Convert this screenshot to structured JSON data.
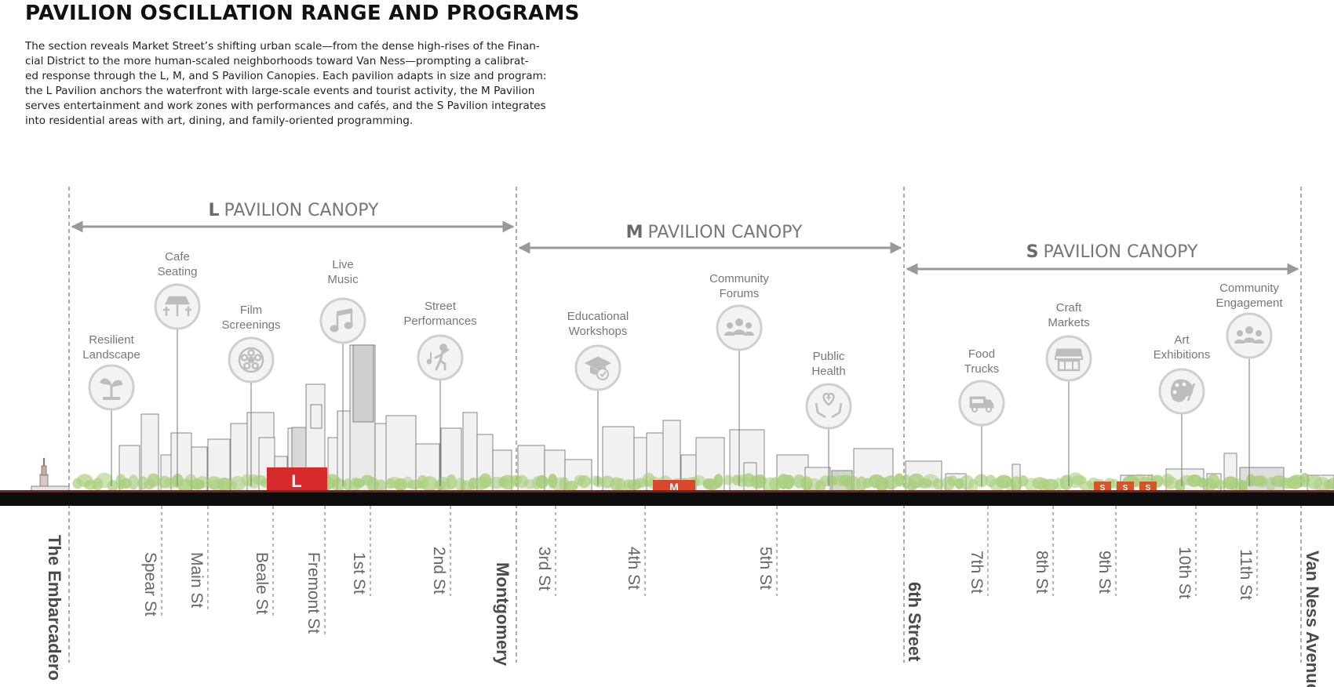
{
  "title": "PAVILION OSCILLATION RANGE AND PROGRAMS",
  "description_lines": [
    "The section reveals Market Street’s shifting urban scale—from the dense high-rises of the Finan-",
    "cial District to the more human-scaled neighborhoods toward Van Ness—prompting a calibrat-",
    "ed response through the L, M, and S Pavilion Canopies. Each pavilion adapts in size and program:",
    "the L Pavilion anchors the waterfront with large-scale events and tourist activity, the M Pavilion",
    "serves entertainment and work zones with performances and cafés, and the S Pavilion integrates",
    "into residential areas with art, dining, and family-oriented programming."
  ],
  "zones": [
    {
      "letter": "L",
      "label": "PAVILION CANOPY"
    },
    {
      "letter": "M",
      "label": "PAVILION CANOPY"
    },
    {
      "letter": "S",
      "label": "PAVILION CANOPY"
    }
  ],
  "programs": [
    {
      "lines": [
        "Resilient",
        "Landscape"
      ],
      "icon": "sprout-icon"
    },
    {
      "lines": [
        "Cafe",
        "Seating"
      ],
      "icon": "cafe-table-icon"
    },
    {
      "lines": [
        "Film",
        "Screenings"
      ],
      "icon": "film-reel-icon"
    },
    {
      "lines": [
        "Live",
        "Music"
      ],
      "icon": "music-note-icon"
    },
    {
      "lines": [
        "Street",
        "Performances"
      ],
      "icon": "dancer-icon"
    },
    {
      "lines": [
        "Educational",
        "Workshops"
      ],
      "icon": "graduation-cap-icon"
    },
    {
      "lines": [
        "Community",
        "Forums"
      ],
      "icon": "people-group-icon"
    },
    {
      "lines": [
        "Public",
        "Health"
      ],
      "icon": "health-hands-icon"
    },
    {
      "lines": [
        "Food",
        "Trucks"
      ],
      "icon": "food-truck-icon"
    },
    {
      "lines": [
        "Craft",
        "Markets"
      ],
      "icon": "market-stall-icon"
    },
    {
      "lines": [
        "Art",
        "Exhibitions"
      ],
      "icon": "art-palette-icon"
    },
    {
      "lines": [
        "Community",
        "Engagement"
      ],
      "icon": "people-group-icon"
    }
  ],
  "streets": [
    {
      "name": "The Embarcadero",
      "major": true
    },
    {
      "name": "Spear St",
      "major": false
    },
    {
      "name": "Main St",
      "major": false
    },
    {
      "name": "Beale St",
      "major": false
    },
    {
      "name": "Fremont St",
      "major": false
    },
    {
      "name": "1st St",
      "major": false
    },
    {
      "name": "2nd St",
      "major": false
    },
    {
      "name": "Montgomery",
      "major": true
    },
    {
      "name": "3rd St",
      "major": false
    },
    {
      "name": "4th St",
      "major": false
    },
    {
      "name": "5th St",
      "major": false
    },
    {
      "name": "6th Street",
      "major": true
    },
    {
      "name": "7th St",
      "major": false
    },
    {
      "name": "8th St",
      "major": false
    },
    {
      "name": "9th St",
      "major": false
    },
    {
      "name": "10th St",
      "major": false
    },
    {
      "name": "11th St",
      "major": false
    },
    {
      "name": "Van Ness Avenue",
      "major": true
    }
  ],
  "pavilion_markers": {
    "large": "L",
    "medium": "M",
    "small": [
      "S",
      "S",
      "S"
    ]
  },
  "colors": {
    "accent_red": "#d62b2b",
    "tree_green": "#9fca6c",
    "ground": "#0d0d0d",
    "line_gray": "#999999"
  }
}
